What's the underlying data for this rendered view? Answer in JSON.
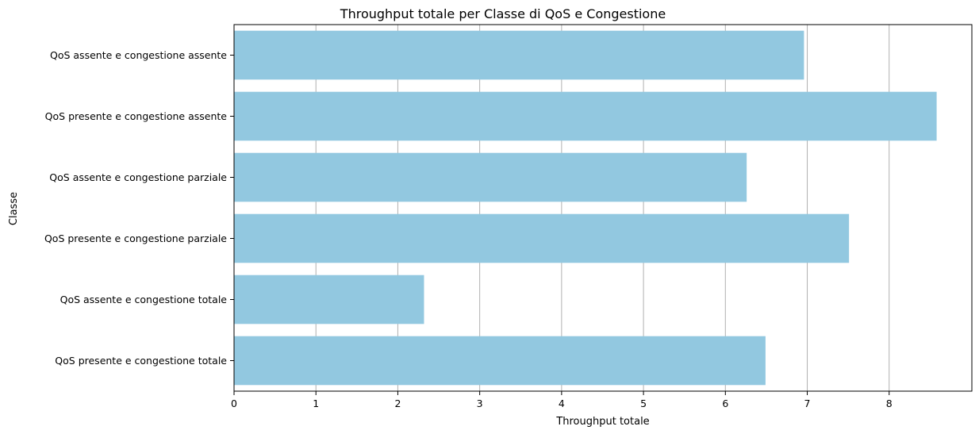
{
  "chart_data": {
    "type": "bar",
    "orientation": "horizontal",
    "title": "Throughput totale per Classe di QoS e Congestione",
    "xlabel": "Throughput totale",
    "ylabel": "Classe",
    "categories": [
      "QoS assente e congestione assente",
      "QoS presente e congestione assente",
      "QoS assente e congestione parziale",
      "QoS presente e congestione parziale",
      "QoS assente e congestione totale",
      "QoS presente e congestione totale"
    ],
    "values": [
      6.96,
      8.58,
      6.26,
      7.51,
      2.32,
      6.49
    ],
    "xlim": [
      0,
      9.01
    ],
    "xticks": [
      0,
      1,
      2,
      3,
      4,
      5,
      6,
      7,
      8
    ],
    "grid": "x",
    "bar_color": "#92c8e0",
    "grid_color": "#b0b0b0"
  }
}
